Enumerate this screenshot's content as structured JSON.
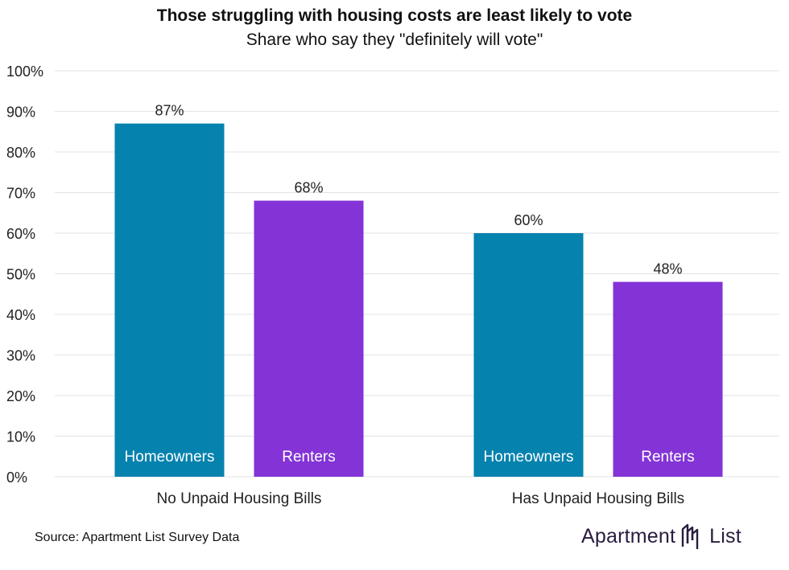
{
  "chart_data": {
    "type": "bar",
    "title": "Those struggling with housing costs are least likely to vote",
    "subtitle": "Share who say they \"definitely will vote\"",
    "categories": [
      "No Unpaid Housing Bills",
      "Has Unpaid Housing Bills"
    ],
    "series": [
      {
        "name": "Homeowners",
        "values": [
          87,
          60
        ],
        "labels": [
          "87%",
          "60%"
        ],
        "color": "#0582ae"
      },
      {
        "name": "Renters",
        "values": [
          68,
          48
        ],
        "labels": [
          "68%",
          "48%"
        ],
        "color": "#8333d6"
      }
    ],
    "ylim": [
      0,
      100
    ],
    "yticks": [
      0,
      10,
      20,
      30,
      40,
      50,
      60,
      70,
      80,
      90,
      100
    ],
    "ytick_labels": [
      "0%",
      "10%",
      "20%",
      "30%",
      "40%",
      "50%",
      "60%",
      "70%",
      "80%",
      "90%",
      "100%"
    ],
    "grid": true,
    "xlabel": "",
    "ylabel": ""
  },
  "source": "Source: Apartment List Survey Data",
  "logo": {
    "word1": "Apartment",
    "word2": "List",
    "color": "#2a1c3f"
  },
  "colors": {
    "grid": "#e3e3e3",
    "axis_text": "#222222",
    "bar_text": "#ffffff"
  }
}
